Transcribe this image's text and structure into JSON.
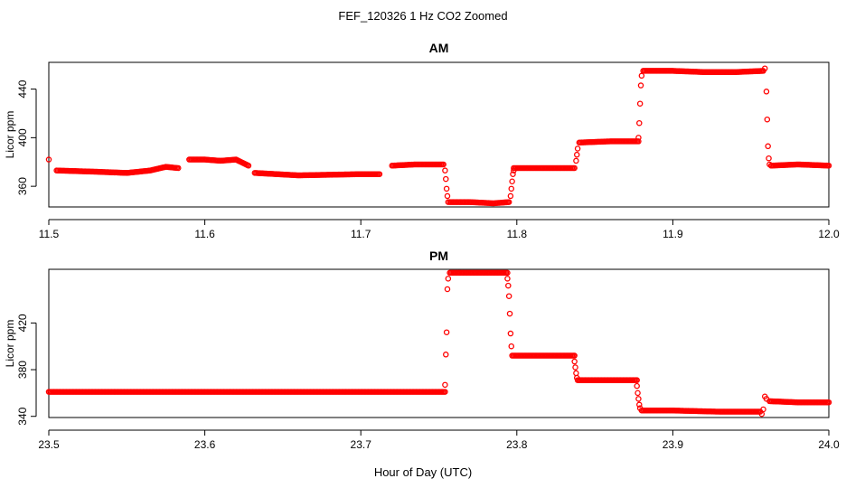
{
  "figure": {
    "title": "FEF_120326  1 Hz CO2 Zoomed",
    "xlabel": "Hour of Day (UTC)"
  },
  "colors": {
    "series": "#ff0000",
    "axis": "#000000"
  },
  "chart_data": [
    {
      "type": "scatter",
      "title": "AM",
      "xlabel": "Hour of Day (UTC)",
      "ylabel": "Licor ppm",
      "xlim": [
        11.5,
        12.0
      ],
      "ylim": [
        343,
        462
      ],
      "xticks": [
        "11.5",
        "11.6",
        "11.7",
        "11.8",
        "11.9",
        "12.0"
      ],
      "xtick_values": [
        11.5,
        11.6,
        11.7,
        11.8,
        11.9,
        12.0
      ],
      "yticks": [
        "360",
        "400",
        "440"
      ],
      "ytick_values": [
        360,
        400,
        440
      ],
      "grid": false,
      "marker": "open-circle",
      "segments": [
        {
          "x": [
            11.5,
            11.505,
            11.53,
            11.55,
            11.565,
            11.575,
            11.583,
            11.59,
            11.6,
            11.61,
            11.62,
            11.628,
            11.632,
            11.66,
            11.7,
            11.712,
            11.72,
            11.735,
            11.753
          ],
          "y": [
            382,
            373,
            372,
            371,
            373,
            376,
            375,
            382,
            382,
            381,
            382,
            377,
            371,
            369,
            370,
            370,
            377,
            378,
            378
          ]
        },
        {
          "x": [
            11.754,
            11.7545,
            11.755,
            11.7555,
            11.756
          ],
          "y": [
            373,
            366,
            358,
            352,
            347
          ]
        },
        {
          "x": [
            11.757,
            11.77,
            11.785,
            11.795
          ],
          "y": [
            347,
            347,
            346,
            347
          ]
        },
        {
          "x": [
            11.796,
            11.7965,
            11.797,
            11.7975,
            11.798
          ],
          "y": [
            352,
            358,
            364,
            370,
            373
          ]
        },
        {
          "x": [
            11.798,
            11.815,
            11.837
          ],
          "y": [
            375,
            375,
            375
          ]
        },
        {
          "x": [
            11.838,
            11.8385,
            11.839
          ],
          "y": [
            381,
            386,
            391
          ]
        },
        {
          "x": [
            11.84,
            11.86,
            11.878
          ],
          "y": [
            396,
            397,
            397
          ]
        },
        {
          "x": [
            11.878,
            11.8785,
            11.879,
            11.8795,
            11.88
          ],
          "y": [
            400,
            412,
            428,
            443,
            451
          ]
        },
        {
          "x": [
            11.881,
            11.9,
            11.92,
            11.94,
            11.958
          ],
          "y": [
            455,
            455,
            454,
            454,
            455
          ]
        },
        {
          "x": [
            11.959,
            11.96,
            11.9605,
            11.961,
            11.9615,
            11.962
          ],
          "y": [
            457,
            438,
            415,
            393,
            383,
            378
          ]
        },
        {
          "x": [
            11.963,
            11.98,
            12.0
          ],
          "y": [
            377,
            378,
            377
          ]
        }
      ]
    },
    {
      "type": "scatter",
      "title": "PM",
      "xlabel": "Hour of Day (UTC)",
      "ylabel": "Licor ppm",
      "xlim": [
        23.5,
        24.0
      ],
      "ylim": [
        339,
        466
      ],
      "xticks": [
        "23.5",
        "23.6",
        "23.7",
        "23.8",
        "23.9",
        "24.0"
      ],
      "xtick_values": [
        23.5,
        23.6,
        23.7,
        23.8,
        23.9,
        24.0
      ],
      "yticks": [
        "340",
        "380",
        "420"
      ],
      "ytick_values": [
        340,
        380,
        420
      ],
      "grid": false,
      "marker": "open-circle",
      "segments": [
        {
          "x": [
            23.5,
            23.55,
            23.6,
            23.65,
            23.7,
            23.754
          ],
          "y": [
            361,
            361,
            361,
            361,
            361,
            361
          ]
        },
        {
          "x": [
            23.754,
            23.7545,
            23.755,
            23.7555,
            23.756
          ],
          "y": [
            367,
            393,
            412,
            449,
            458
          ]
        },
        {
          "x": [
            23.757,
            23.775,
            23.794
          ],
          "y": [
            463,
            463,
            463
          ]
        },
        {
          "x": [
            23.794,
            23.7945,
            23.795,
            23.7955,
            23.796,
            23.7965
          ],
          "y": [
            458,
            452,
            443,
            428,
            411,
            400
          ]
        },
        {
          "x": [
            23.797,
            23.815,
            23.837
          ],
          "y": [
            392,
            392,
            392
          ]
        },
        {
          "x": [
            23.837,
            23.8375,
            23.838,
            23.8385
          ],
          "y": [
            387,
            382,
            377,
            373
          ]
        },
        {
          "x": [
            23.839,
            23.86,
            23.877
          ],
          "y": [
            371,
            371,
            371
          ]
        },
        {
          "x": [
            23.877,
            23.8775,
            23.878,
            23.8785,
            23.879
          ],
          "y": [
            366,
            360,
            355,
            350,
            347
          ]
        },
        {
          "x": [
            23.88,
            23.9,
            23.93,
            23.956
          ],
          "y": [
            345,
            345,
            344,
            344
          ]
        },
        {
          "x": [
            23.957,
            23.958
          ],
          "y": [
            342,
            346
          ]
        },
        {
          "x": [
            23.959,
            23.96,
            23.962,
            23.98,
            24.0
          ],
          "y": [
            357,
            355,
            353,
            352,
            352
          ]
        }
      ]
    }
  ]
}
